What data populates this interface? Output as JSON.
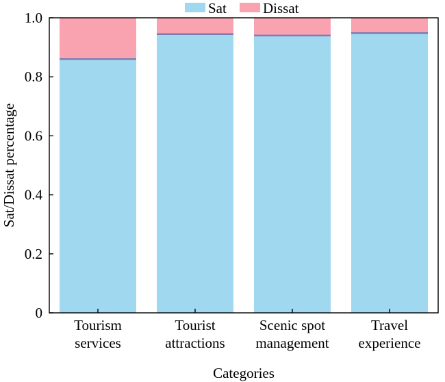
{
  "chart_data": {
    "type": "bar",
    "stacked": true,
    "categories": [
      [
        "Tourism",
        "services"
      ],
      [
        "Tourist",
        "attractions"
      ],
      [
        "Scenic spot",
        "management"
      ],
      [
        "Travel",
        "experience"
      ]
    ],
    "series": [
      {
        "name": "Sat",
        "color": "#a0d8ef",
        "values": [
          0.86,
          0.945,
          0.94,
          0.948
        ]
      },
      {
        "name": "Dissat",
        "color": "#f9a3b0",
        "values": [
          0.14,
          0.055,
          0.06,
          0.052
        ]
      }
    ],
    "boundary_color": "#7e7cb4",
    "title": "",
    "xlabel": "Categories",
    "ylabel": "Sat/Dissat percentage",
    "ylim": [
      0,
      1.0
    ],
    "yticks": [
      "0",
      "0.2",
      "0.4",
      "0.6",
      "0.8",
      "1.0"
    ],
    "legend_position": "top-center",
    "grid": false
  }
}
